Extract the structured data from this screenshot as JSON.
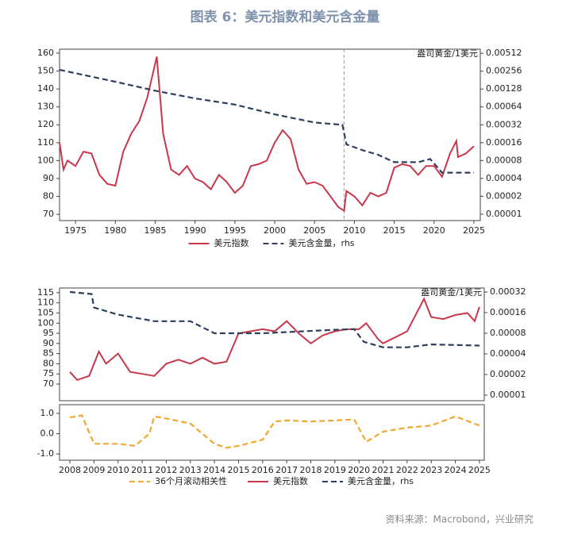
{
  "title": "图表 6：美元指数和美元含金量",
  "source": "资料来源：Macrobond，兴业研究",
  "chart_data": [
    {
      "type": "line",
      "y2label": "盎司黄金/1美元",
      "xlim": [
        1973,
        2025.8
      ],
      "xticks": [
        1975,
        1980,
        1985,
        1990,
        1995,
        2000,
        2005,
        2010,
        2015,
        2020,
        2025
      ],
      "ylim": [
        66.5,
        162.2
      ],
      "yticks": [
        70,
        80,
        90,
        100,
        110,
        120,
        130,
        140,
        150,
        160
      ],
      "y2log": true,
      "y2lim": [
        7.8e-06,
        0.006
      ],
      "y2ticks": [
        {
          "value": 1e-05,
          "label": "0.00001"
        },
        {
          "value": 2e-05,
          "label": "0.00002"
        },
        {
          "value": 4e-05,
          "label": "0.00004"
        },
        {
          "value": 8e-05,
          "label": "0.00008"
        },
        {
          "value": 0.00016,
          "label": "0.00016"
        },
        {
          "value": 0.00032,
          "label": "0.00032"
        },
        {
          "value": 0.00064,
          "label": "0.00064"
        },
        {
          "value": 0.00128,
          "label": "0.00128"
        },
        {
          "value": 0.00256,
          "label": "0.00256"
        },
        {
          "value": 0.00512,
          "label": "0.00512"
        }
      ],
      "vline": 2008.7,
      "legend": true,
      "series": [
        {
          "name": "美元指数",
          "color": "#c8374a",
          "line_style": "solid",
          "x": [
            1973,
            1973.5,
            1974,
            1975,
            1976,
            1977,
            1978,
            1979,
            1980,
            1981,
            1982,
            1983,
            1984,
            1985.2,
            1986,
            1987,
            1988,
            1989,
            1990,
            1991,
            1992,
            1993,
            1994,
            1995,
            1996,
            1997,
            1998,
            1999,
            2000,
            2001,
            2002,
            2003,
            2004,
            2005,
            2006,
            2007,
            2008,
            2008.7,
            2009,
            2010,
            2011,
            2012,
            2013,
            2014,
            2015,
            2016,
            2017,
            2018,
            2019,
            2020,
            2021,
            2022,
            2022.8,
            2023,
            2024,
            2025
          ],
          "values": [
            110,
            95,
            100,
            97,
            105,
            104,
            92,
            87,
            86,
            105,
            115,
            122,
            135,
            158,
            115,
            95,
            92,
            97,
            90,
            88,
            84,
            92,
            88,
            82,
            86,
            97,
            98,
            100,
            110,
            117,
            112,
            95,
            87,
            88,
            86,
            80,
            74,
            72,
            83,
            80,
            75,
            82,
            80,
            82,
            96,
            98,
            97,
            92,
            97,
            97,
            91,
            104,
            111,
            102,
            104,
            108
          ]
        },
        {
          "name": "美元含金量，rhs",
          "color": "#2e3f5e",
          "line_style": "dashed",
          "axis": "y2",
          "x": [
            1973,
            1980,
            1985,
            1990,
            1995,
            2000,
            2005,
            2008.5,
            2009,
            2011,
            2013,
            2015,
            2018,
            2019.5,
            2020.5,
            2021,
            2025
          ],
          "values": [
            0.0027,
            0.0017,
            0.0012,
            0.00089,
            0.0007,
            0.00048,
            0.00035,
            0.00032,
            0.00015,
            0.00012,
            0.0001,
            7.5e-05,
            7.5e-05,
            8.5e-05,
            6e-05,
            5e-05,
            5e-05
          ]
        }
      ]
    },
    {
      "type": "line",
      "y2label": "盎司黄金/1美元",
      "xlim": [
        2007.57,
        2025.2
      ],
      "ylim": [
        61.8,
        117.3
      ],
      "yticks": [
        70,
        75,
        80,
        85,
        90,
        95,
        100,
        105,
        110,
        115
      ],
      "y2log": true,
      "y2lim": [
        8.3e-06,
        0.000366
      ],
      "y2ticks": [
        {
          "value": 1e-05,
          "label": "0.00001"
        },
        {
          "value": 2e-05,
          "label": "0.00002"
        },
        {
          "value": 4e-05,
          "label": "0.00004"
        },
        {
          "value": 8e-05,
          "label": "0.00008"
        },
        {
          "value": 0.00016,
          "label": "0.00016"
        },
        {
          "value": 0.00032,
          "label": "0.00032"
        }
      ],
      "series": [
        {
          "name": "美元指数",
          "color": "#c8374a",
          "line_style": "solid",
          "x": [
            2008,
            2008.3,
            2008.8,
            2009.2,
            2009.5,
            2010,
            2010.5,
            2011,
            2011.5,
            2012,
            2012.5,
            2013,
            2013.5,
            2014,
            2014.5,
            2015,
            2015.5,
            2016,
            2016.5,
            2017,
            2017.5,
            2018,
            2018.5,
            2019,
            2019.5,
            2020,
            2020.3,
            2020.8,
            2021,
            2021.5,
            2022,
            2022.7,
            2023,
            2023.5,
            2024,
            2024.5,
            2024.8,
            2025
          ],
          "values": [
            76,
            72,
            74,
            86,
            80,
            85,
            76,
            75,
            74,
            80,
            82,
            80,
            83,
            80,
            81,
            95,
            96,
            97,
            96,
            101,
            95,
            90,
            94,
            96,
            97,
            97,
            100,
            92,
            90,
            93,
            96,
            112,
            103,
            102,
            104,
            105,
            101,
            108
          ]
        },
        {
          "name": "美元含金量，rhs",
          "color": "#2e3f5e",
          "line_style": "dashed",
          "axis": "y2",
          "x": [
            2008,
            2008.9,
            2009,
            2010,
            2011.5,
            2013,
            2014,
            2016,
            2019,
            2019.8,
            2020.2,
            2021,
            2022,
            2023,
            2025
          ],
          "values": [
            0.00032,
            0.0003,
            0.00019,
            0.00015,
            0.00012,
            0.00012,
            8e-05,
            8e-05,
            9e-05,
            9.2e-05,
            6e-05,
            5e-05,
            5e-05,
            5.5e-05,
            5.3e-05
          ]
        }
      ]
    },
    {
      "type": "line",
      "xlim": [
        2007.57,
        2025.2
      ],
      "xticks": [
        2008,
        2009,
        2010,
        2011,
        2012,
        2013,
        2014,
        2015,
        2016,
        2017,
        2018,
        2019,
        2020,
        2021,
        2022,
        2023,
        2024,
        2025
      ],
      "ylim": [
        -1.31,
        1.43
      ],
      "yticks": [
        {
          "value": 1,
          "label": "1.0"
        },
        {
          "value": 0,
          "label": "0.0"
        },
        {
          "value": -1,
          "label": "-1.0"
        }
      ],
      "series": [
        {
          "name": "36个月滚动相关性",
          "color": "#f0a830",
          "line_style": "dashed",
          "x": [
            2008,
            2008.5,
            2009,
            2010,
            2010.7,
            2011.3,
            2011.5,
            2012,
            2013,
            2014,
            2014.5,
            2015,
            2016,
            2016.5,
            2017,
            2018,
            2019,
            2019.8,
            2020.3,
            2021,
            2022,
            2023,
            2024,
            2025
          ],
          "values": [
            0.8,
            0.9,
            -0.5,
            -0.5,
            -0.6,
            0.0,
            0.85,
            0.75,
            0.5,
            -0.5,
            -0.7,
            -0.6,
            -0.3,
            0.6,
            0.65,
            0.6,
            0.65,
            0.7,
            -0.4,
            0.1,
            0.3,
            0.4,
            0.85,
            0.4
          ]
        }
      ]
    }
  ]
}
